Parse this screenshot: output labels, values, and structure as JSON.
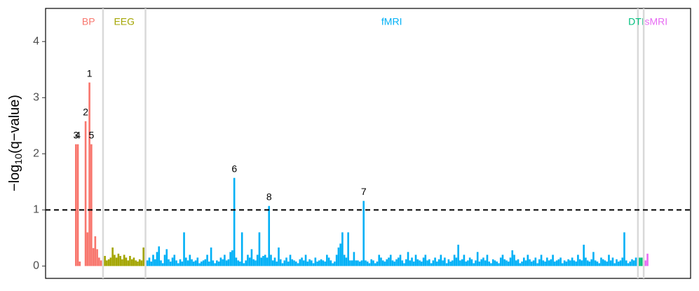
{
  "chart_data": {
    "type": "bar",
    "y_label": {
      "prefix": "−log",
      "subscript": "10",
      "suffix": "(q−value)"
    },
    "ylim": [
      -0.22,
      4.59
    ],
    "yticks": [
      0,
      1,
      2,
      3,
      4
    ],
    "hline": 1,
    "series": [
      {
        "name": "BP",
        "color": "#F8766D",
        "values": [
          2.17,
          2.17,
          0.08,
          0,
          0,
          2.58,
          0.6,
          3.27,
          2.17,
          0.32,
          0.53,
          0.3,
          0.15,
          0.1
        ],
        "labels": [
          "3",
          "4",
          null,
          null,
          null,
          "2",
          null,
          "1",
          "5",
          null,
          null,
          null,
          null,
          null
        ]
      },
      {
        "name": "EEG",
        "color": "#A3A500",
        "values": [
          0.18,
          0.1,
          0.12,
          0.15,
          0.33,
          0.2,
          0.15,
          0.22,
          0.18,
          0.12,
          0.2,
          0.15,
          0.1,
          0.18,
          0.12,
          0.15,
          0.1,
          0.08,
          0.12,
          0.1,
          0.33
        ]
      },
      {
        "name": "fMRI",
        "color": "#00B0F6",
        "values": [
          0.1,
          0.15,
          0.08,
          0.2,
          0.12,
          0.25,
          0.35,
          0.1,
          0.05,
          0.2,
          0.3,
          0.12,
          0.08,
          0.15,
          0.2,
          0.1,
          0.05,
          0.12,
          0.08,
          0.6,
          0.15,
          0.1,
          0.2,
          0.12,
          0.08,
          0.1,
          0.15,
          0.05,
          0.08,
          0.1,
          0.12,
          0.2,
          0.08,
          0.33,
          0.1,
          0.05,
          0.1,
          0.08,
          0.15,
          0.12,
          0.2,
          0.1,
          0.12,
          0.25,
          0.28,
          1.57,
          0.15,
          0.1,
          0.08,
          0.6,
          0.05,
          0.1,
          0.2,
          0.15,
          0.3,
          0.12,
          0.1,
          0.2,
          0.6,
          0.15,
          0.18,
          0.2,
          0.15,
          1.07,
          0.2,
          0.1,
          0.15,
          0.08,
          0.33,
          0.12,
          0.05,
          0.1,
          0.15,
          0.08,
          0.2,
          0.12,
          0.1,
          0.08,
          0.05,
          0.12,
          0.15,
          0.1,
          0.2,
          0.08,
          0.12,
          0.1,
          0.05,
          0.15,
          0.08,
          0.1,
          0.12,
          0.1,
          0.08,
          0.2,
          0.15,
          0.1,
          0.05,
          0.08,
          0.2,
          0.33,
          0.4,
          0.6,
          0.2,
          0.15,
          0.6,
          0.1,
          0.1,
          0.25,
          0.1,
          0.1,
          0.08,
          0.1,
          1.16,
          0.1,
          0.08,
          0.05,
          0.12,
          0.1,
          0.05,
          0.08,
          0.2,
          0.15,
          0.1,
          0.08,
          0.12,
          0.15,
          0.2,
          0.1,
          0.08,
          0.12,
          0.15,
          0.2,
          0.1,
          0.05,
          0.12,
          0.25,
          0.1,
          0.15,
          0.08,
          0.2,
          0.12,
          0.1,
          0.08,
          0.15,
          0.2,
          0.1,
          0.12,
          0.05,
          0.1,
          0.15,
          0.08,
          0.12,
          0.2,
          0.1,
          0.15,
          0.05,
          0.12,
          0.08,
          0.1,
          0.2,
          0.15,
          0.38,
          0.1,
          0.12,
          0.2,
          0.08,
          0.1,
          0.15,
          0.12,
          0.05,
          0.1,
          0.25,
          0.08,
          0.12,
          0.15,
          0.1,
          0.2,
          0.08,
          0.05,
          0.12,
          0.1,
          0.08,
          0.05,
          0.15,
          0.2,
          0.12,
          0.1,
          0.08,
          0.15,
          0.28,
          0.2,
          0.1,
          0.12,
          0.05,
          0.08,
          0.15,
          0.1,
          0.2,
          0.12,
          0.08,
          0.1,
          0.15,
          0.05,
          0.12,
          0.2,
          0.1,
          0.08,
          0.15,
          0.1,
          0.12,
          0.2,
          0.08,
          0.1,
          0.12,
          0.15,
          0.05,
          0.1,
          0.08,
          0.12,
          0.1,
          0.15,
          0.1,
          0.08,
          0.2,
          0.12,
          0.1,
          0.38,
          0.15,
          0.1,
          0.08,
          0.12,
          0.25,
          0.1,
          0.08,
          0.05,
          0.15,
          0.12,
          0.1,
          0.08,
          0.2,
          0.1,
          0.15,
          0.05,
          0.12,
          0.08,
          0.1,
          0.15,
          0.6,
          0.1,
          0.05,
          0.08,
          0.12,
          0.1,
          0.15
        ],
        "labels": [
          null,
          null,
          null,
          null,
          null,
          null,
          null,
          null,
          null,
          null,
          null,
          null,
          null,
          null,
          null,
          null,
          null,
          null,
          null,
          null,
          null,
          null,
          null,
          null,
          null,
          null,
          null,
          null,
          null,
          null,
          null,
          null,
          null,
          null,
          null,
          null,
          null,
          null,
          null,
          null,
          null,
          null,
          null,
          null,
          null,
          "6",
          null,
          null,
          null,
          null,
          null,
          null,
          null,
          null,
          null,
          null,
          null,
          null,
          null,
          null,
          null,
          null,
          null,
          "8",
          null,
          null,
          null,
          null,
          null,
          null,
          null,
          null,
          null,
          null,
          null,
          null,
          null,
          null,
          null,
          null,
          null,
          null,
          null,
          null,
          null,
          null,
          null,
          null,
          null,
          null,
          null,
          null,
          null,
          null,
          null,
          null,
          null,
          null,
          null,
          null,
          null,
          null,
          null,
          null,
          null,
          null,
          null,
          null,
          null,
          null,
          null,
          null,
          "7"
        ]
      },
      {
        "name": "DTI",
        "color": "#00BF7D",
        "values": [
          0.15,
          0.15
        ]
      },
      {
        "name": "sMRI",
        "color": "#E76BF3",
        "values": [
          0.1,
          0.22
        ]
      }
    ]
  }
}
